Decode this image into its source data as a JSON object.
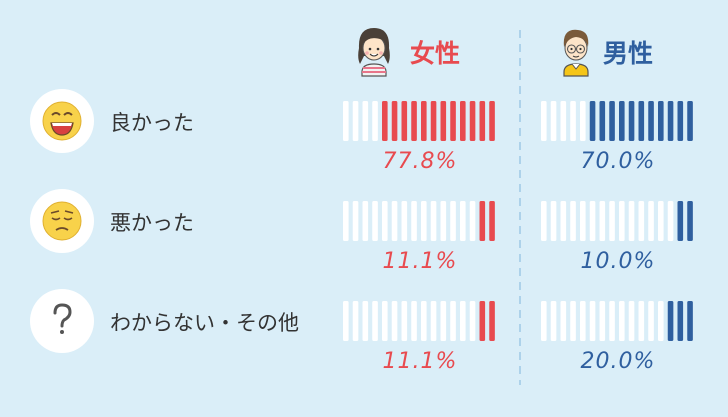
{
  "chart_data": {
    "type": "bar",
    "subtype": "pictorial-stripe-bar",
    "stripes_per_bar": 16,
    "series": [
      {
        "name": "女性",
        "color": "#e84a4f",
        "values": [
          77.8,
          11.1,
          11.1
        ],
        "labels": [
          "77.8%",
          "11.1%",
          "11.1%"
        ]
      },
      {
        "name": "男性",
        "color": "#2f5f9f",
        "values": [
          70.0,
          10.0,
          20.0
        ],
        "labels": [
          "70.0%",
          "10.0%",
          "20.0%"
        ]
      }
    ],
    "categories": [
      "良かった",
      "悪かった",
      "わからない・その他"
    ],
    "category_icons": [
      "smile-face-icon",
      "worried-face-icon",
      "question-mark-icon"
    ],
    "ylim": [
      0,
      100
    ],
    "empty_color": "#ffffff",
    "divider_color": "#9ec9e6"
  }
}
